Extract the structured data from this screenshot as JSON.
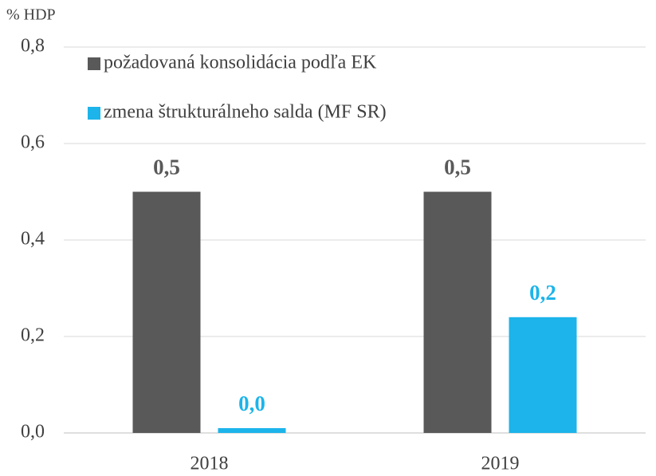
{
  "chart_data": {
    "type": "bar",
    "y_axis_label": "% HDP",
    "categories": [
      "2018",
      "2019"
    ],
    "series": [
      {
        "name": "požadovaná konsolidácia podľa EK",
        "color": "#595959",
        "values": [
          0.5,
          0.5
        ],
        "value_labels": [
          "0,5",
          "0,5"
        ]
      },
      {
        "name": "zmena štrukturálneho salda (MF SR)",
        "color": "#1cb4ea",
        "values": [
          0.01,
          0.24
        ],
        "value_labels": [
          "0,0",
          "0,2"
        ]
      }
    ],
    "ylim": [
      0,
      0.8
    ],
    "yticks": [
      {
        "value": 0,
        "label": "0,0"
      },
      {
        "value": 0.2,
        "label": "0,2"
      },
      {
        "value": 0.4,
        "label": "0,4"
      },
      {
        "value": 0.6,
        "label": "0,6"
      },
      {
        "value": 0.8,
        "label": "0,8"
      }
    ],
    "grid": true,
    "legend": "top-left"
  }
}
